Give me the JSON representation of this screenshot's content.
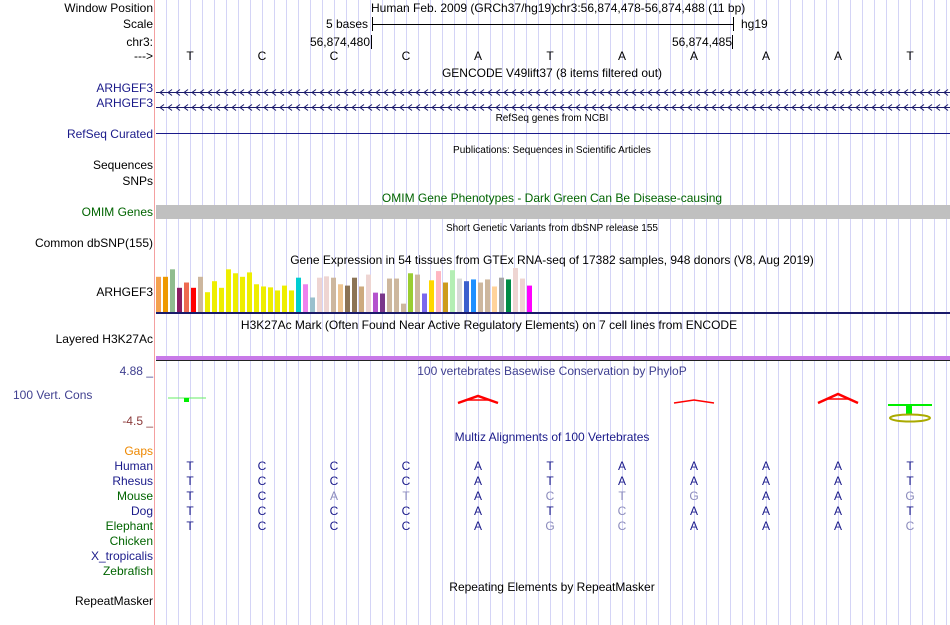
{
  "header": {
    "window_position_label": "Window Position",
    "scale_label": "Scale",
    "chrom_label": "chr3:",
    "strand_label": "--->",
    "assembly_text": "Human Feb. 2009 (GRCh37/hg19)",
    "position_text": "chr3:56,874,478-56,874,488 (11 bp)",
    "scale_text": "5 bases",
    "scale_db": "hg19",
    "coord_left": "56,874,480",
    "coord_right": "56,874,485",
    "bases": [
      "T",
      "C",
      "C",
      "C",
      "A",
      "T",
      "A",
      "A",
      "A",
      "A",
      "T"
    ]
  },
  "tracks": {
    "gencode_title": "GENCODE V49lift37 (8 items filtered out)",
    "gencode_items": [
      "ARHGEF3",
      "ARHGEF3"
    ],
    "refseq_title": "RefSeq genes from NCBI",
    "refseq_label": "RefSeq Curated",
    "pubs_title": "Publications: Sequences in Scientific Articles",
    "pubs_label1": "Sequences",
    "pubs_label2": "SNPs",
    "omim_title": "OMIM Gene Phenotypes - Dark Green Can Be Disease-causing",
    "omim_label": "OMIM Genes",
    "snp_title": "Short Genetic Variants from dbSNP release 155",
    "snp_label": "Common dbSNP(155)",
    "gtex_title": "Gene Expression in 54 tissues from GTEx RNA-seq of 17382 samples, 948 donors (V8, Aug 2019)",
    "gtex_label": "ARHGEF3",
    "h3k_title": "H3K27Ac Mark (Often Found Near Active Regulatory Elements) on 7 cell lines from ENCODE",
    "h3k_label": "Layered H3K27Ac",
    "cons_title": "100 vertebrates Basewise Conservation by PhyloP",
    "cons_label": "100 Vert. Cons",
    "cons_max": "4.88 _",
    "cons_min": "-4.5 _",
    "multiz_title": "Multiz Alignments of 100 Vertebrates",
    "gaps_label": "Gaps",
    "species": [
      {
        "name": "Human",
        "seq": "TCCCATAAAAT",
        "color": "#1a1a8a"
      },
      {
        "name": "Rhesus",
        "seq": "TCCCATAAAAT",
        "color": "#1a1a8a"
      },
      {
        "name": "Mouse",
        "seq": "TCATACTGAAG",
        "color": "#006400"
      },
      {
        "name": "Dog",
        "seq": "TCCCATCAAAT",
        "color": "#1a1a8a"
      },
      {
        "name": "Elephant",
        "seq": "TCCCAGCAAAC",
        "color": "#006400"
      },
      {
        "name": "Chicken",
        "seq": "",
        "color": "#006400"
      },
      {
        "name": "X_tropicalis",
        "seq": "",
        "color": "#1a1a8a"
      },
      {
        "name": "Zebrafish",
        "seq": "",
        "color": "#006400"
      }
    ],
    "rmsk_title": "Repeating Elements by RepeatMasker",
    "rmsk_label": "RepeatMasker"
  },
  "chart_data": {
    "type": "bar",
    "title": "Gene Expression in 54 tissues from GTEx RNA-seq of 17382 samples, 948 donors (V8, Aug 2019)",
    "values": [
      0.8,
      0.8,
      0.97,
      0.55,
      0.67,
      0.55,
      0.8,
      0.45,
      0.7,
      0.55,
      0.97,
      0.88,
      0.8,
      0.9,
      0.63,
      0.58,
      0.56,
      0.49,
      0.6,
      0.49,
      0.78,
      0.63,
      0.33,
      0.78,
      0.81,
      0.78,
      0.63,
      0.6,
      0.78,
      0.58,
      0.85,
      0.44,
      0.42,
      0.76,
      0.76,
      0.19,
      0.88,
      0.85,
      0.42,
      0.72,
      0.93,
      0.67,
      0.95,
      0.76,
      0.7,
      0.74,
      0.67,
      0.74,
      0.58,
      0.78,
      0.74,
      1.0,
      0.76,
      0.6
    ],
    "colors": [
      "#F4A14F",
      "#EE9900",
      "#8FBC8F",
      "#8B1C62",
      "#EE6A50",
      "#FF0000",
      "#CDB79E",
      "#EEEE00",
      "#EEEE00",
      "#EEEE00",
      "#EEEE00",
      "#EEEE00",
      "#EEEE00",
      "#EEEE00",
      "#EEEE00",
      "#EEEE00",
      "#EEEE00",
      "#EEEE00",
      "#EEEE00",
      "#EEEE00",
      "#00CED1",
      "#EE82EE",
      "#9AC0CD",
      "#EED5D2",
      "#EED5D2",
      "#CDB79E",
      "#EEC591",
      "#8B7355",
      "#8B7355",
      "#CDAA7D",
      "#EED5D2",
      "#B452CD",
      "#7A378B",
      "#CDB79E",
      "#CDB79E",
      "#CDB79E",
      "#9ACD32",
      "#CDB79E",
      "#7B68EE",
      "#FFD700",
      "#FFB6C1",
      "#CD9B1D",
      "#B4EEB4",
      "#D9D9D9",
      "#3A5FCD",
      "#1E90FF",
      "#CDB79E",
      "#CDB79E",
      "#FFD39B",
      "#A6A6A6",
      "#008B45",
      "#EED5D2",
      "#EED5D2",
      "#FF00FF"
    ],
    "ylim": [
      0,
      1
    ]
  }
}
